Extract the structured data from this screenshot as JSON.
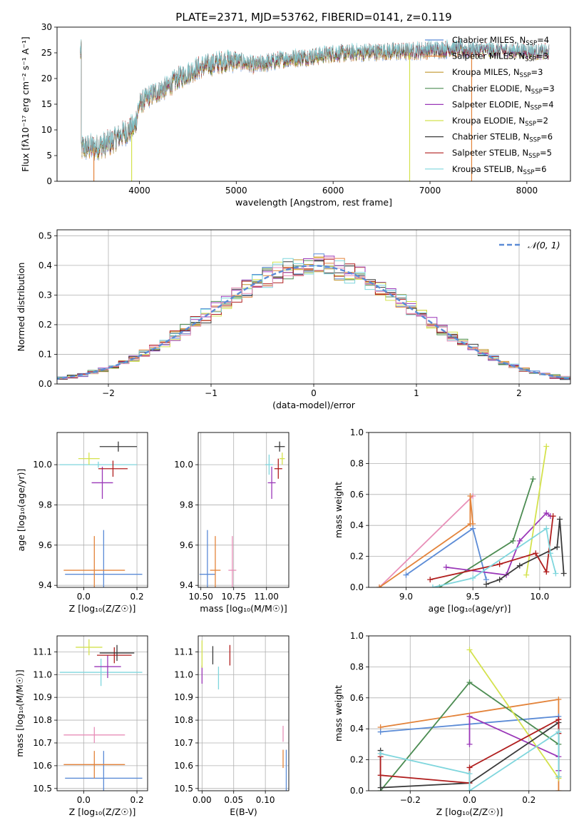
{
  "figure": {
    "title": "PLATE=2371, MJD=53762, FIBERID=0141, z=0.119"
  },
  "chart_data": [
    {
      "id": "spectrum",
      "type": "line",
      "xlabel": "wavelength [Angstrom, rest frame]",
      "ylabel": "Flux [fλ10⁻¹⁷ erg cm⁻² s⁻¹ A⁻¹]",
      "xlim": [
        3150,
        8450
      ],
      "ylim": [
        0,
        30
      ],
      "xticks": [
        4000,
        5000,
        6000,
        7000,
        8000
      ],
      "yticks": [
        0,
        5,
        10,
        15,
        20,
        25,
        30
      ],
      "grid": false,
      "legend_position": "right",
      "legend": [
        {
          "label": "Chabrier MILES, N",
          "sub": "SSP",
          "tail": "=4",
          "color": "#5b8bd6"
        },
        {
          "label": "Salpeter MILES, N",
          "sub": "SSP",
          "tail": "=3",
          "color": "#e3833a"
        },
        {
          "label": "Kroupa MILES, N",
          "sub": "SSP",
          "tail": "=3",
          "color": "#c0962e"
        },
        {
          "label": "Chabrier ELODIE, N",
          "sub": "SSP",
          "tail": "=3",
          "color": "#4c8c52"
        },
        {
          "label": "Salpeter ELODIE, N",
          "sub": "SSP",
          "tail": "=4",
          "color": "#9a37b8"
        },
        {
          "label": "Kroupa ELODIE, N",
          "sub": "SSP",
          "tail": "=2",
          "color": "#d4e24d"
        },
        {
          "label": "Chabrier STELIB, N",
          "sub": "SSP",
          "tail": "=6",
          "color": "#3a3a3a"
        },
        {
          "label": "Salpeter STELIB, N",
          "sub": "SSP",
          "tail": "=5",
          "color": "#b01e1e"
        },
        {
          "label": "Kroupa STELIB, N",
          "sub": "SSP",
          "tail": "=6",
          "color": "#7fd6dd"
        }
      ],
      "continuum": {
        "x": [
          3400,
          3550,
          3700,
          3800,
          3900,
          3950,
          4000,
          4100,
          4200,
          4300,
          4400,
          4500,
          4600,
          4700,
          4800,
          4900,
          5000,
          5100,
          5200,
          5300,
          5500,
          5800,
          6000,
          6200,
          6500,
          6800,
          7000,
          7200,
          7400,
          7600,
          7800,
          8000,
          8200
        ],
        "y": [
          6.5,
          6.6,
          7.5,
          9,
          10,
          10.5,
          15,
          16.5,
          17.5,
          18.5,
          20,
          21,
          22,
          22.5,
          23,
          23.5,
          23.5,
          23,
          22.5,
          23,
          23.8,
          24.3,
          24.8,
          25,
          25.2,
          25.3,
          25.6,
          25.8,
          25.5,
          25.4,
          25.3,
          25.2,
          25
        ]
      }
    },
    {
      "id": "residuals",
      "type": "step",
      "xlabel": "(data-model)/error",
      "ylabel": "Normed distribution",
      "xlim": [
        -2.5,
        2.5
      ],
      "ylim": [
        0,
        0.52
      ],
      "xticks": [
        -2,
        -1,
        0,
        1,
        2
      ],
      "yticks": [
        0.0,
        0.1,
        0.2,
        0.3,
        0.4,
        0.5
      ],
      "grid": true,
      "legend_position": "top-right",
      "legend_label": "𝒩(0, 1)",
      "gauss_color": "#5b8bd6"
    },
    {
      "id": "age-vs-Z",
      "type": "scatter",
      "xlabel": "Z [log₁₀(Z/Z☉)]",
      "ylabel": "age  [log₁₀(age/yr)]",
      "xlim": [
        -0.1,
        0.24
      ],
      "ylim": [
        9.39,
        10.16
      ],
      "xticks": [
        0.0,
        0.2
      ],
      "yticks": [
        9.4,
        9.6,
        9.8,
        10.0
      ],
      "grid": true,
      "points": [
        {
          "x": 0.075,
          "y": 9.455,
          "xerr": 0.145,
          "yerr": 0.22,
          "color": "#5b8bd6"
        },
        {
          "x": 0.04,
          "y": 9.475,
          "xerr": 0.115,
          "yerr": 0.17,
          "color": "#e3833a"
        },
        {
          "x": 0.055,
          "y": 10.0,
          "xerr": 0.145,
          "yerr": 0.015,
          "color": "#7fd6dd"
        },
        {
          "x": 0.07,
          "y": 9.91,
          "xerr": 0.04,
          "yerr": 0.08,
          "color": "#9a37b8"
        },
        {
          "x": 0.11,
          "y": 9.98,
          "xerr": 0.055,
          "yerr": 0.04,
          "color": "#b01e1e"
        },
        {
          "x": 0.13,
          "y": 10.09,
          "xerr": 0.07,
          "yerr": 0.025,
          "color": "#3a3a3a"
        },
        {
          "x": 0.02,
          "y": 10.03,
          "xerr": 0.04,
          "yerr": 0.03,
          "color": "#d4e24d"
        }
      ]
    },
    {
      "id": "age-vs-mass",
      "type": "scatter",
      "xlabel": "mass [log₁₀(M/M☉)]",
      "ylabel": "",
      "xlim": [
        10.48,
        11.17
      ],
      "ylim": [
        9.39,
        10.16
      ],
      "xticks": [
        10.5,
        10.75,
        11.0
      ],
      "yticks": [
        9.4,
        9.6,
        9.8,
        10.0
      ],
      "grid": true,
      "points": [
        {
          "x": 10.55,
          "y": 9.455,
          "xerr": 0.06,
          "yerr": 0.22,
          "color": "#5b8bd6"
        },
        {
          "x": 10.61,
          "y": 9.475,
          "xerr": 0.04,
          "yerr": 0.17,
          "color": "#e3833a"
        },
        {
          "x": 10.74,
          "y": 9.475,
          "xerr": 0.03,
          "yerr": 0.17,
          "color": "#e88fb8"
        },
        {
          "x": 11.02,
          "y": 10.0,
          "xerr": 0.03,
          "yerr": 0.05,
          "color": "#7fd6dd"
        },
        {
          "x": 11.04,
          "y": 9.91,
          "xerr": 0.03,
          "yerr": 0.08,
          "color": "#9a37b8"
        },
        {
          "x": 11.09,
          "y": 9.98,
          "xerr": 0.03,
          "yerr": 0.05,
          "color": "#b01e1e"
        },
        {
          "x": 11.1,
          "y": 10.09,
          "xerr": 0.04,
          "yerr": 0.025,
          "color": "#3a3a3a"
        },
        {
          "x": 11.12,
          "y": 10.03,
          "xerr": 0.02,
          "yerr": 0.03,
          "color": "#d4e24d"
        }
      ]
    },
    {
      "id": "massweight-vs-age",
      "type": "line",
      "xlabel": "age  [log₁₀(age/yr)]",
      "ylabel": "mass weight",
      "xlim": [
        8.72,
        10.23
      ],
      "ylim": [
        0,
        1.0
      ],
      "xticks": [
        9.0,
        9.5,
        10.0
      ],
      "yticks": [
        0.0,
        0.2,
        0.4,
        0.6,
        0.8,
        1.0
      ],
      "grid": true,
      "series": [
        {
          "color": "#e88fb8",
          "x": [
            8.8,
            9.5
          ],
          "y": [
            0.0,
            0.59
          ]
        },
        {
          "color": "#e3833a",
          "x": [
            8.8,
            9.48,
            9.48,
            9.5
          ],
          "y": [
            0.0,
            0.41,
            0.59,
            0.41
          ]
        },
        {
          "color": "#5b8bd6",
          "x": [
            9.0,
            9.5,
            9.6
          ],
          "y": [
            0.08,
            0.38,
            0.05
          ]
        },
        {
          "color": "#4c8c52",
          "x": [
            9.25,
            9.8,
            9.95
          ],
          "y": [
            0.0,
            0.3,
            0.7
          ]
        },
        {
          "color": "#9a37b8",
          "x": [
            9.3,
            9.75,
            9.85,
            10.05,
            10.08
          ],
          "y": [
            0.13,
            0.08,
            0.3,
            0.48,
            0.46
          ]
        },
        {
          "color": "#d4e24d",
          "x": [
            9.9,
            10.05
          ],
          "y": [
            0.08,
            0.91
          ]
        },
        {
          "color": "#3a3a3a",
          "x": [
            9.6,
            9.7,
            9.85,
            10.13,
            10.15,
            10.18
          ],
          "y": [
            0.02,
            0.05,
            0.14,
            0.26,
            0.44,
            0.09
          ]
        },
        {
          "color": "#b01e1e",
          "x": [
            9.18,
            9.7,
            9.97,
            10.05,
            10.1
          ],
          "y": [
            0.05,
            0.15,
            0.22,
            0.1,
            0.46
          ]
        },
        {
          "color": "#7fd6dd",
          "x": [
            9.2,
            9.5,
            10.05,
            10.08,
            10.12
          ],
          "y": [
            0.0,
            0.06,
            0.38,
            0.22,
            0.09
          ]
        }
      ]
    },
    {
      "id": "mass-vs-Z",
      "type": "scatter",
      "xlabel": "Z [log₁₀(Z/Z☉)]",
      "ylabel": "mass [log₁₀(M/M☉)]",
      "xlim": [
        -0.1,
        0.24
      ],
      "ylim": [
        10.49,
        11.17
      ],
      "xticks": [
        0.0,
        0.2
      ],
      "yticks": [
        10.5,
        10.6,
        10.7,
        10.8,
        10.9,
        11.0,
        11.1
      ],
      "grid": true,
      "points": [
        {
          "x": 0.075,
          "y": 10.545,
          "xerr": 0.145,
          "yerr": 0.12,
          "color": "#5b8bd6"
        },
        {
          "x": 0.04,
          "y": 10.605,
          "xerr": 0.115,
          "yerr": 0.06,
          "color": "#e3833a"
        },
        {
          "x": 0.04,
          "y": 10.735,
          "xerr": 0.115,
          "yerr": 0.035,
          "color": "#e88fb8"
        },
        {
          "x": 0.065,
          "y": 11.01,
          "xerr": 0.155,
          "yerr": 0.06,
          "color": "#7fd6dd"
        },
        {
          "x": 0.09,
          "y": 11.035,
          "xerr": 0.05,
          "yerr": 0.05,
          "color": "#9a37b8"
        },
        {
          "x": 0.115,
          "y": 11.085,
          "xerr": 0.065,
          "yerr": 0.035,
          "color": "#b01e1e"
        },
        {
          "x": 0.125,
          "y": 11.095,
          "xerr": 0.065,
          "yerr": 0.035,
          "color": "#3a3a3a"
        },
        {
          "x": 0.02,
          "y": 11.12,
          "xerr": 0.05,
          "yerr": 0.035,
          "color": "#d4e24d"
        }
      ]
    },
    {
      "id": "mass-vs-ebv",
      "type": "scatter",
      "xlabel": "E(B-V)",
      "ylabel": "",
      "xlim": [
        -0.006,
        0.137
      ],
      "ylim": [
        10.49,
        11.17
      ],
      "xticks": [
        0.0,
        0.05,
        0.1
      ],
      "yticks": [
        10.5,
        10.6,
        10.7,
        10.8,
        10.9,
        11.0,
        11.1
      ],
      "grid": true,
      "points": [
        {
          "x": 0.133,
          "y": 10.58,
          "xerr": 0,
          "yerr": 0.09,
          "color": "#5b8bd6"
        },
        {
          "x": 0.128,
          "y": 10.63,
          "xerr": 0,
          "yerr": 0.04,
          "color": "#e3833a"
        },
        {
          "x": 0.128,
          "y": 10.74,
          "xerr": 0,
          "yerr": 0.035,
          "color": "#e88fb8"
        },
        {
          "x": 0.026,
          "y": 10.985,
          "xerr": 0,
          "yerr": 0.05,
          "color": "#7fd6dd"
        },
        {
          "x": 0.0,
          "y": 11.0,
          "xerr": 0,
          "yerr": 0.04,
          "color": "#9a37b8"
        },
        {
          "x": 0.044,
          "y": 11.085,
          "xerr": 0,
          "yerr": 0.045,
          "color": "#b01e1e"
        },
        {
          "x": 0.017,
          "y": 11.085,
          "xerr": 0,
          "yerr": 0.04,
          "color": "#3a3a3a"
        },
        {
          "x": 0.0,
          "y": 11.09,
          "xerr": 0,
          "yerr": 0.06,
          "color": "#d4e24d"
        }
      ]
    },
    {
      "id": "massweight-vs-Z",
      "type": "line",
      "xlabel": "Z [log₁₀(Z/Z☉)]",
      "ylabel": "mass weight",
      "xlim": [
        -0.34,
        0.34
      ],
      "ylim": [
        0,
        1.0
      ],
      "xticks": [
        -0.2,
        0.0,
        0.2
      ],
      "yticks": [
        0.0,
        0.2,
        0.4,
        0.6,
        0.8,
        1.0
      ],
      "grid": true,
      "series": [
        {
          "color": "#e3833a",
          "x": [
            -0.3,
            0.3,
            0.3
          ],
          "y": [
            0.41,
            0.59,
            0.0
          ]
        },
        {
          "color": "#5b8bd6",
          "x": [
            -0.3,
            0.3,
            0.3
          ],
          "y": [
            0.38,
            0.48,
            0.13
          ]
        },
        {
          "color": "#4c8c52",
          "x": [
            -0.3,
            0.0,
            0.3
          ],
          "y": [
            0.0,
            0.7,
            0.3
          ]
        },
        {
          "color": "#9a37b8",
          "x": [
            0.0,
            0.0,
            0.3,
            0.3
          ],
          "y": [
            0.3,
            0.48,
            0.22,
            0.13
          ]
        },
        {
          "color": "#d4e24d",
          "x": [
            0.0,
            0.3
          ],
          "y": [
            0.91,
            0.08
          ]
        },
        {
          "color": "#3a3a3a",
          "x": [
            -0.3,
            -0.3,
            0.0,
            0.3,
            0.3
          ],
          "y": [
            0.26,
            0.02,
            0.05,
            0.44,
            0.09
          ]
        },
        {
          "color": "#b01e1e",
          "x": [
            -0.3,
            -0.3,
            0.0,
            0.0,
            0.3,
            0.3
          ],
          "y": [
            0.22,
            0.1,
            0.05,
            0.15,
            0.46,
            0.37
          ]
        },
        {
          "color": "#7fd6dd",
          "x": [
            -0.3,
            0.0,
            0.0,
            0.3,
            0.3
          ],
          "y": [
            0.24,
            0.11,
            0.0,
            0.38,
            0.09
          ]
        }
      ]
    }
  ]
}
